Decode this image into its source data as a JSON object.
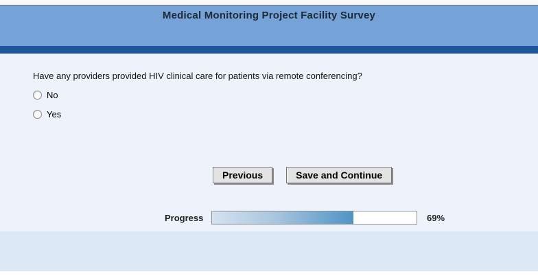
{
  "header": {
    "title": "Medical Monitoring Project Facility Survey"
  },
  "question": {
    "text": "Have any providers provided HIV clinical care for patients via remote conferencing?",
    "options": [
      {
        "label": "No",
        "selected": false
      },
      {
        "label": "Yes",
        "selected": false
      }
    ]
  },
  "buttons": {
    "previous": "Previous",
    "save_continue": "Save and Continue"
  },
  "progress": {
    "label": "Progress",
    "percent": 69,
    "percent_text": "69%"
  },
  "colors": {
    "banner_bg": "#75a3d7",
    "accent_bar": "#1e559c",
    "main_bg": "#eef3fb",
    "footer_bg": "#dce8f5",
    "progress_fill_start": "#d4e2ef",
    "progress_fill_end": "#4f94c6"
  }
}
